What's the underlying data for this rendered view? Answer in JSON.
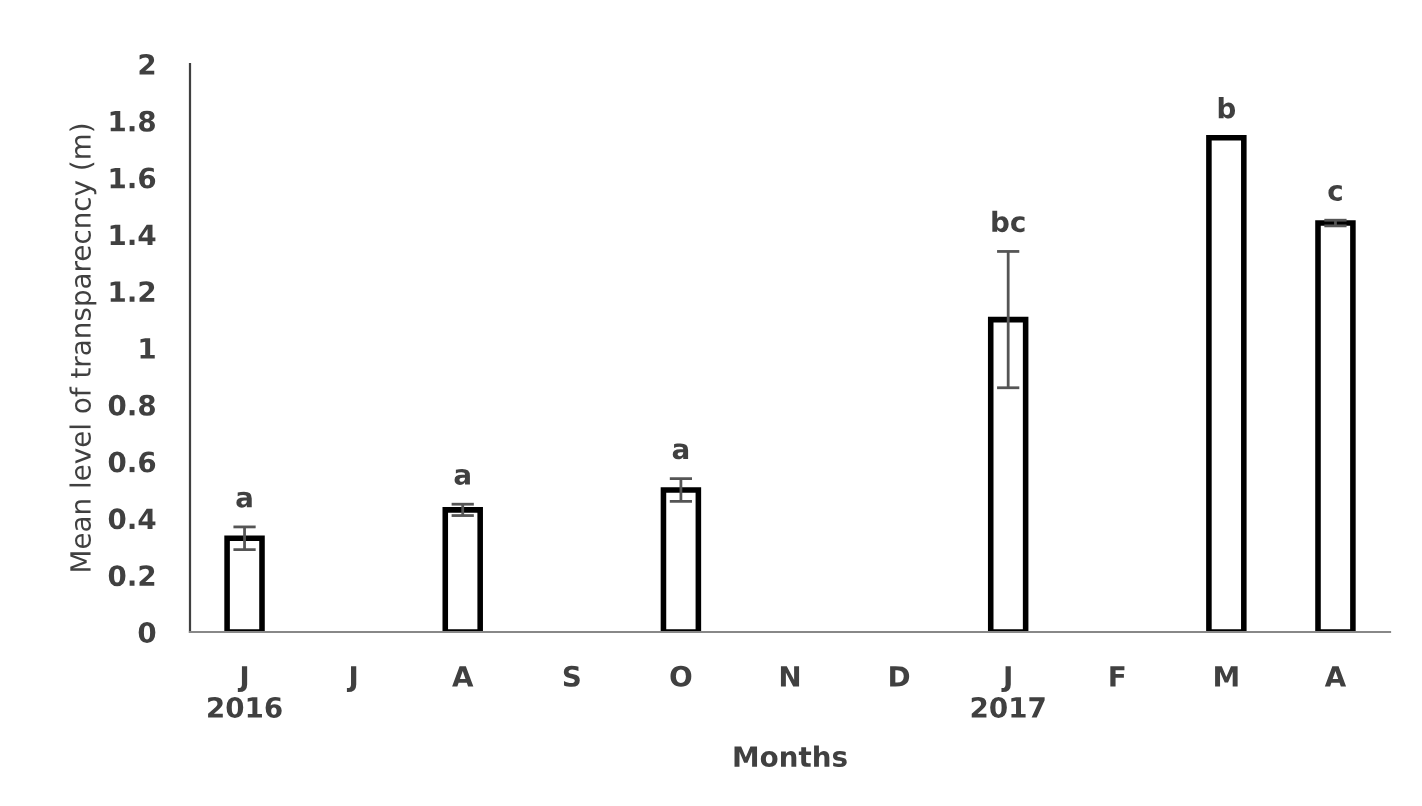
{
  "chart_data": {
    "type": "bar",
    "xlabel": "Months",
    "ylabel": "Mean level of transparecncy (m)",
    "categories": [
      "J\n2016",
      "J",
      "A",
      "S",
      "O",
      "N",
      "D",
      "J\n2017",
      "F",
      "M",
      "A"
    ],
    "values": [
      0.33,
      null,
      0.43,
      null,
      0.5,
      null,
      null,
      1.1,
      null,
      1.74,
      1.44
    ],
    "errors": [
      0.04,
      null,
      0.02,
      null,
      0.04,
      null,
      null,
      0.24,
      null,
      null,
      0.01
    ],
    "value_labels": [
      "a",
      null,
      "a",
      null,
      "a",
      null,
      null,
      "bc",
      null,
      "b",
      "c"
    ],
    "color": "#ffffff",
    "ylim": [
      0,
      2
    ],
    "yticks": [
      0,
      {
        "value": 0.2,
        "label": "0.2"
      },
      {
        "value": 0.4,
        "label": "0.4"
      },
      {
        "value": 0.6,
        "label": "0.6"
      },
      {
        "value": 0.8,
        "label": "0.8"
      },
      1,
      {
        "value": 1.2,
        "label": "1.2"
      },
      {
        "value": 1.4,
        "label": "1.4"
      },
      {
        "value": 1.6,
        "label": "1.6"
      },
      {
        "value": 1.8,
        "label": "1.8"
      },
      2
    ],
    "grid": false,
    "legend": false
  }
}
